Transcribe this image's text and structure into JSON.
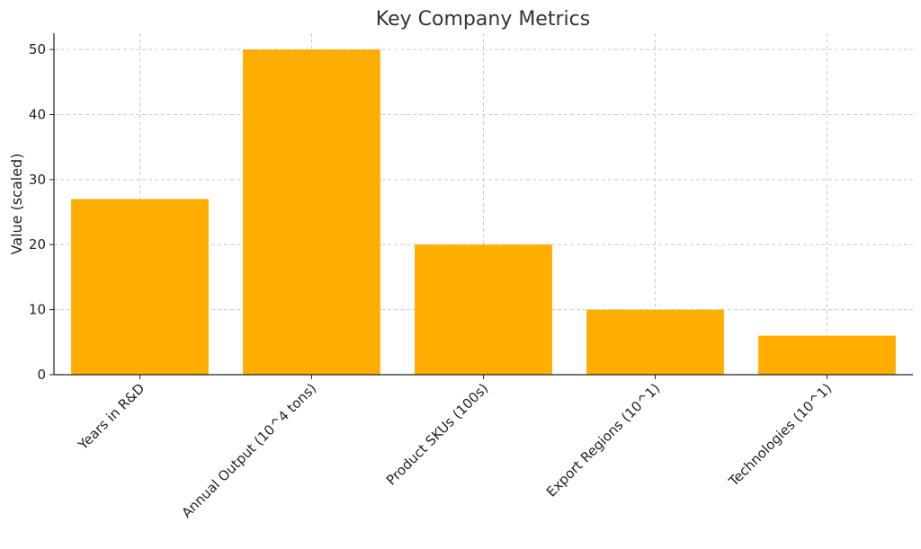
{
  "chart_data": {
    "type": "bar",
    "title": "Key Company Metrics",
    "xlabel": "",
    "ylabel": "Value (scaled)",
    "categories": [
      "Years in R&D",
      "Annual Output (10^4 tons)",
      "Product SKUs (100s)",
      "Export Regions (10^1)",
      "Technologies (10^1)"
    ],
    "values": [
      27,
      50,
      20,
      10,
      6
    ],
    "ylim": [
      0,
      52.5
    ],
    "yticks": [
      0,
      10,
      20,
      30,
      40,
      50
    ],
    "grid": true,
    "bar_color": "#FFAE00"
  }
}
